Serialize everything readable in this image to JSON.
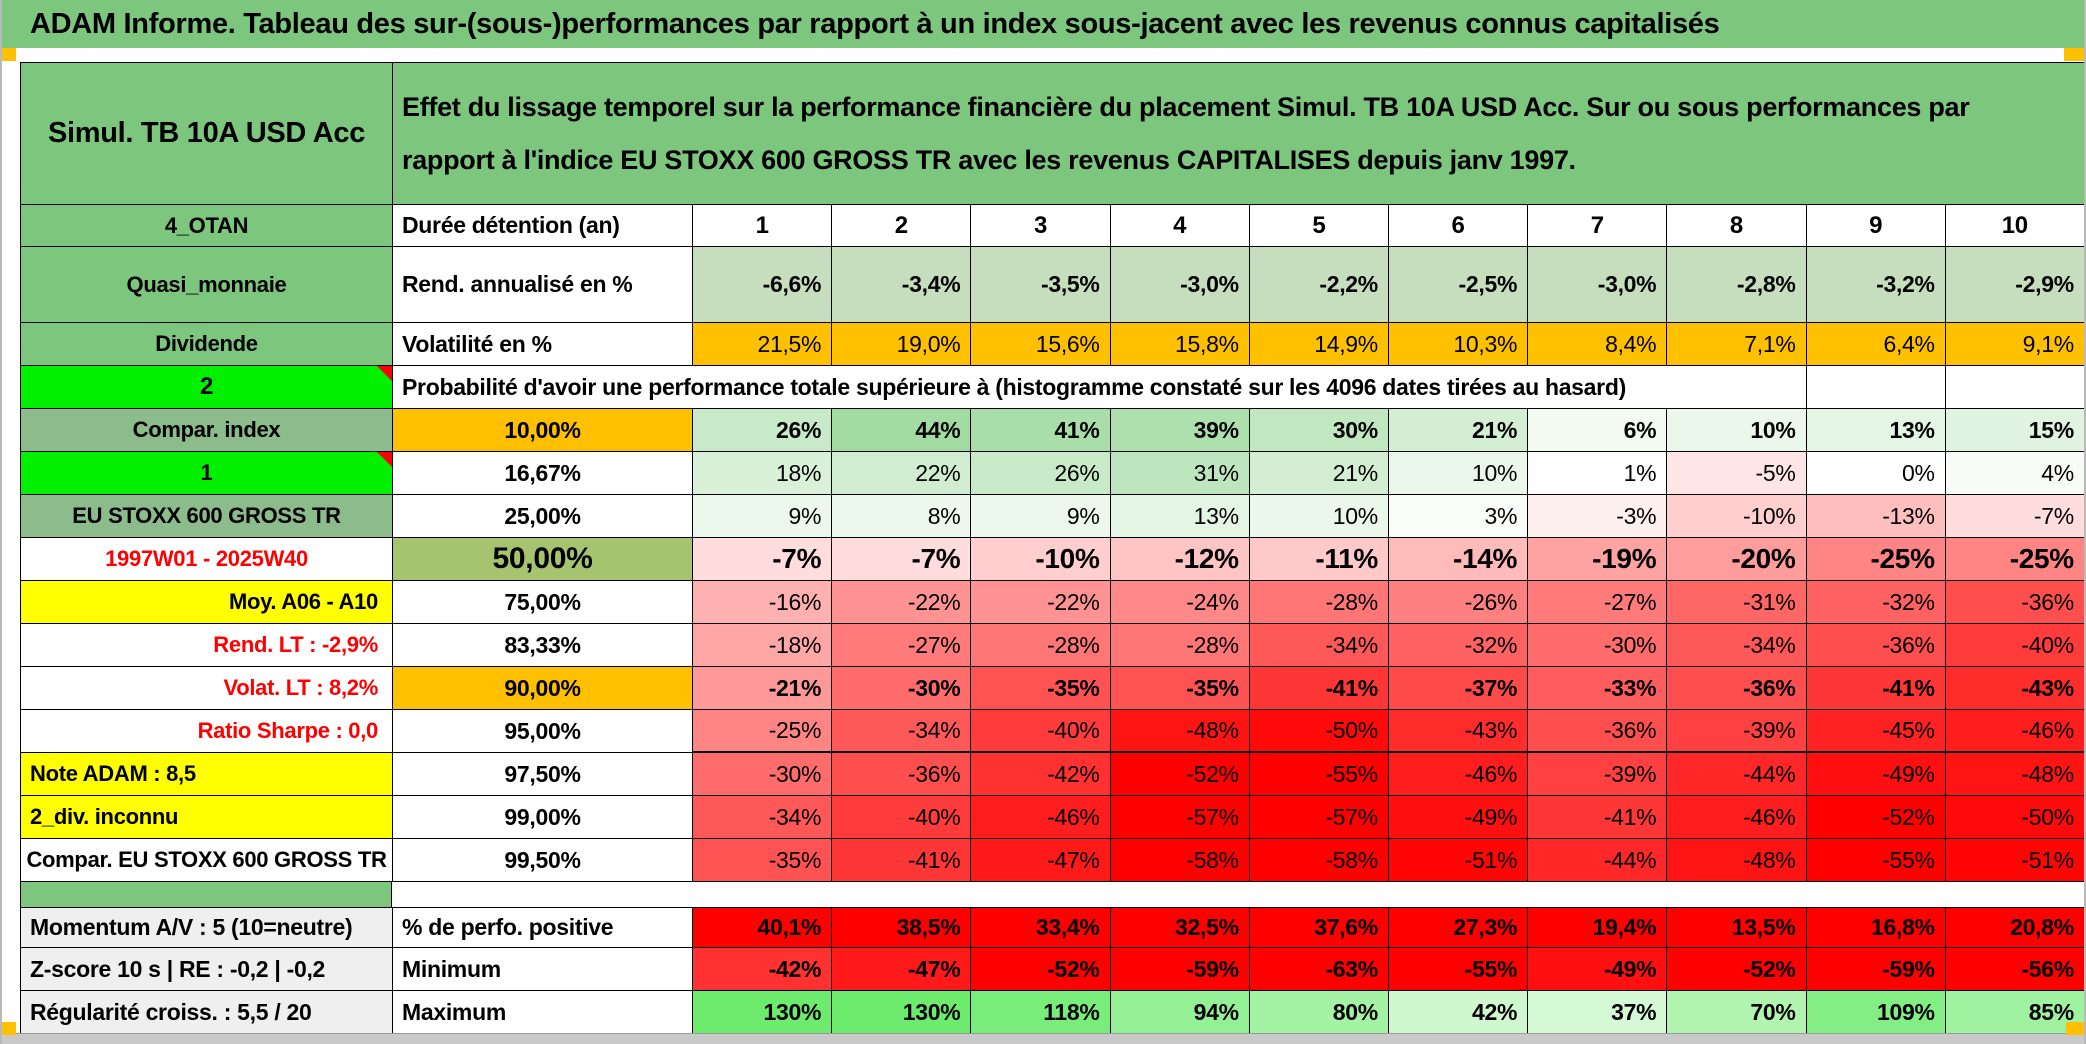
{
  "title": "ADAM Informe. Tableau des sur-(sous-)performances par rapport à un index sous-jacent avec les revenus connus capitalisés",
  "header": {
    "product": "Simul. TB 10A USD Acc",
    "description": "Effet du lissage temporel sur la performance financière du placement Simul. TB 10A USD Acc. Sur ou sous performances par rapport à l'indice EU STOXX 600 GROSS TR avec les revenus CAPITALISES depuis janv 1997."
  },
  "columns": [
    "1",
    "2",
    "3",
    "4",
    "5",
    "6",
    "7",
    "8",
    "9",
    "10"
  ],
  "column_header": {
    "label": "4_OTAN",
    "measure": "Durée détention (an)"
  },
  "top_rows": [
    {
      "label": "Quasi_monnaie",
      "measure": "Rend. annualisé en %",
      "cell_bg": "#C6DEBE",
      "bold": true,
      "values": [
        "-6,6%",
        "-3,4%",
        "-3,5%",
        "-3,0%",
        "-2,2%",
        "-2,5%",
        "-3,0%",
        "-2,8%",
        "-3,2%",
        "-2,9%"
      ]
    },
    {
      "label": "Dividende",
      "measure": "Volatilité en %",
      "cell_bg": "#FFC000",
      "bold": false,
      "values": [
        "21,5%",
        "19,0%",
        "15,6%",
        "15,8%",
        "14,9%",
        "10,3%",
        "8,4%",
        "7,1%",
        "6,4%",
        "9,1%"
      ]
    }
  ],
  "probability": {
    "banner_label": "2",
    "banner_text": "Probabilité d'avoir une performance totale supérieure à (histogramme constaté sur les 4096 dates tirées au hasard)",
    "rows": [
      {
        "label": "Compar. index",
        "label_bg": "#8CBC8C",
        "label_color": "#000000",
        "label_align": "center",
        "note": false,
        "threshold": "10,00%",
        "threshold_bg": "#FFC000",
        "bold": true,
        "large": false,
        "values": [
          "26%",
          "44%",
          "41%",
          "39%",
          "30%",
          "21%",
          "6%",
          "10%",
          "13%",
          "15%"
        ]
      },
      {
        "label": "1",
        "label_bg": "#00F000",
        "label_color": "#000000",
        "label_align": "center",
        "note": true,
        "threshold": "16,67%",
        "threshold_bg": "#FFFFFF",
        "bold": false,
        "large": false,
        "values": [
          "18%",
          "22%",
          "26%",
          "31%",
          "21%",
          "10%",
          "1%",
          "-5%",
          "0%",
          "4%"
        ]
      },
      {
        "label": "EU STOXX 600 GROSS TR",
        "label_bg": "#8CBC8C",
        "label_color": "#000000",
        "label_align": "center",
        "note": false,
        "threshold": "25,00%",
        "threshold_bg": "#FFFFFF",
        "bold": false,
        "large": false,
        "values": [
          "9%",
          "8%",
          "9%",
          "13%",
          "10%",
          "3%",
          "-3%",
          "-10%",
          "-13%",
          "-7%"
        ]
      },
      {
        "label": "1997W01 - 2025W40",
        "label_bg": "#FFFFFF",
        "label_color": "#FF0000",
        "label_align": "center",
        "note": false,
        "threshold": "50,00%",
        "threshold_bg": "#A6C36F",
        "bold": true,
        "large": true,
        "values": [
          "-7%",
          "-7%",
          "-10%",
          "-12%",
          "-11%",
          "-14%",
          "-19%",
          "-20%",
          "-25%",
          "-25%"
        ]
      },
      {
        "label": "Moy. A06 - A10",
        "label_bg": "#FFFF00",
        "label_color": "#000000",
        "label_align": "right",
        "note": false,
        "threshold": "75,00%",
        "threshold_bg": "#FFFFFF",
        "bold": false,
        "large": false,
        "values": [
          "-16%",
          "-22%",
          "-22%",
          "-24%",
          "-28%",
          "-26%",
          "-27%",
          "-31%",
          "-32%",
          "-36%"
        ]
      },
      {
        "label": "Rend. LT :   -2,9%",
        "label_bg": "#FFFFFF",
        "label_color": "#FF0000",
        "label_align": "right",
        "note": false,
        "threshold": "83,33%",
        "threshold_bg": "#FFFFFF",
        "bold": false,
        "large": false,
        "values": [
          "-18%",
          "-27%",
          "-28%",
          "-28%",
          "-34%",
          "-32%",
          "-30%",
          "-34%",
          "-36%",
          "-40%"
        ]
      },
      {
        "label": "Volat. LT :   8,2%",
        "label_bg": "#FFFFFF",
        "label_color": "#FF0000",
        "label_align": "right",
        "note": false,
        "threshold": "90,00%",
        "threshold_bg": "#FFC000",
        "bold": true,
        "large": false,
        "values": [
          "-21%",
          "-30%",
          "-35%",
          "-35%",
          "-41%",
          "-37%",
          "-33%",
          "-36%",
          "-41%",
          "-43%"
        ]
      },
      {
        "label": "Ratio Sharpe :   0,0",
        "label_bg": "#FFFFFF",
        "label_color": "#FF0000",
        "label_align": "right",
        "note": false,
        "threshold": "95,00%",
        "threshold_bg": "#FFFFFF",
        "bold": false,
        "large": false,
        "thick_bottom": true,
        "values": [
          "-25%",
          "-34%",
          "-40%",
          "-48%",
          "-50%",
          "-43%",
          "-36%",
          "-39%",
          "-45%",
          "-46%"
        ]
      },
      {
        "label": "Note ADAM : 8,5",
        "label_bg": "#FFFF00",
        "label_color": "#000000",
        "label_align": "left",
        "note": false,
        "threshold": "97,50%",
        "threshold_bg": "#FFFFFF",
        "bold": false,
        "large": false,
        "values": [
          "-30%",
          "-36%",
          "-42%",
          "-52%",
          "-55%",
          "-46%",
          "-39%",
          "-44%",
          "-49%",
          "-48%"
        ]
      },
      {
        "label": "2_div. inconnu",
        "label_bg": "#FFFF00",
        "label_color": "#000000",
        "label_align": "left",
        "note": false,
        "threshold": "99,00%",
        "threshold_bg": "#FFFFFF",
        "bold": false,
        "large": false,
        "values": [
          "-34%",
          "-40%",
          "-46%",
          "-57%",
          "-57%",
          "-49%",
          "-41%",
          "-46%",
          "-52%",
          "-50%"
        ]
      },
      {
        "label": "Compar. EU STOXX 600 GROSS TR",
        "label_bg": "#FFFFFF",
        "label_color": "#000000",
        "label_align": "center",
        "note": false,
        "threshold": "99,50%",
        "threshold_bg": "#FFFFFF",
        "bold": false,
        "large": false,
        "values": [
          "-35%",
          "-41%",
          "-47%",
          "-58%",
          "-58%",
          "-51%",
          "-44%",
          "-48%",
          "-55%",
          "-51%"
        ]
      }
    ]
  },
  "summary_rows": [
    {
      "label": "Momentum A/V : 5 (10=neutre)",
      "measure": "% de perfo. positive",
      "mode": "red",
      "values": [
        "40,1%",
        "38,5%",
        "33,4%",
        "32,5%",
        "37,6%",
        "27,3%",
        "19,4%",
        "13,5%",
        "16,8%",
        "20,8%"
      ]
    },
    {
      "label": "Z-score 10 s | RE : -0,2 | -0,2",
      "measure": "Minimum",
      "mode": "min",
      "values": [
        "-42%",
        "-47%",
        "-52%",
        "-59%",
        "-63%",
        "-55%",
        "-49%",
        "-52%",
        "-59%",
        "-56%"
      ]
    },
    {
      "label": "Régularité croiss. : 5,5 / 20",
      "measure": "Maximum",
      "mode": "max",
      "values": [
        "130%",
        "130%",
        "118%",
        "94%",
        "80%",
        "42%",
        "37%",
        "70%",
        "109%",
        "85%"
      ]
    }
  ],
  "colors": {
    "title_bg": "#7CC67E",
    "label_green": "#7CC67E",
    "label_sage": "#8CBC8C",
    "bright_green": "#00F000",
    "orange": "#FFC000",
    "yellow": "#FFFF00",
    "olive_50pct": "#A6C36F",
    "rend_row_bg": "#C6DEBE",
    "red": "#FF0000",
    "summary_label_bg": "#EFEFEF",
    "window_gray": "#C9C9C9"
  }
}
